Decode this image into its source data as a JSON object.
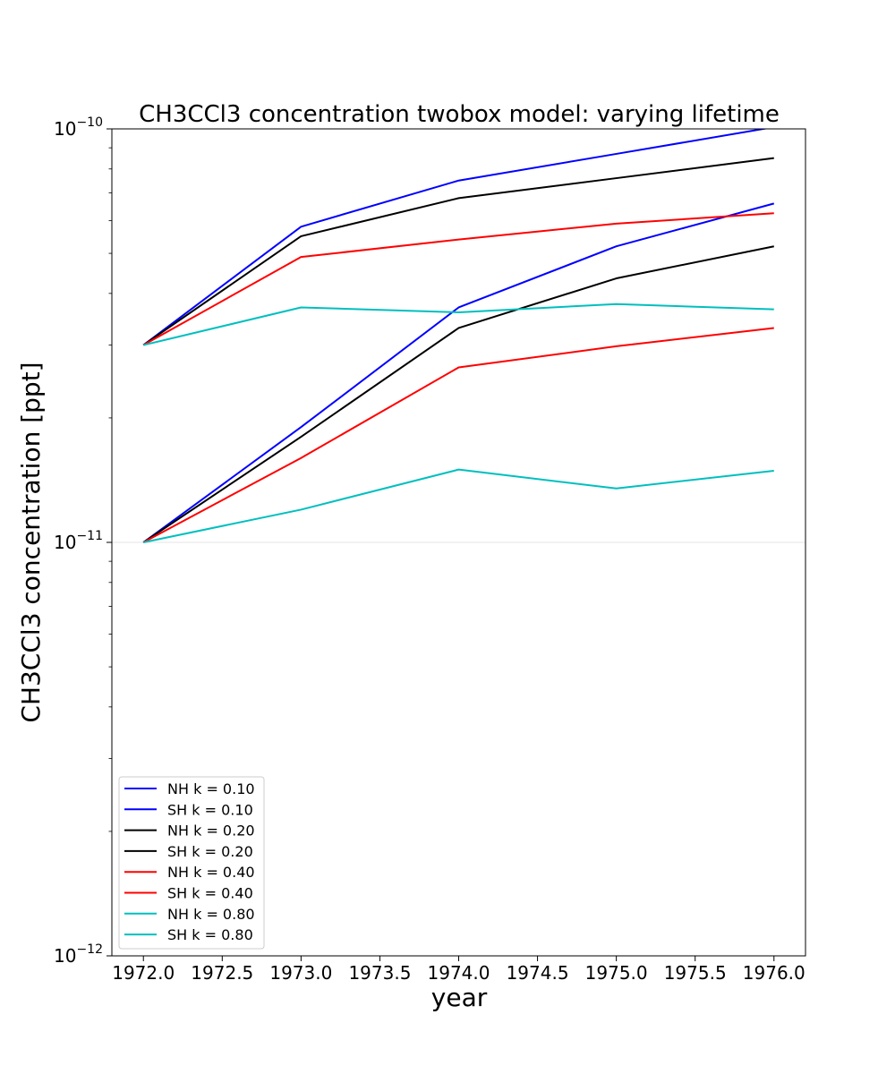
{
  "chart_data": {
    "type": "line",
    "title": "CH3CCl3 concentration twobox model: varying lifetime",
    "xlabel": "year",
    "ylabel": "CH3CCl3 concentration [ppt]",
    "yscale": "log",
    "xlim": [
      1971.8,
      1976.2
    ],
    "ylim": [
      1e-12,
      1e-10
    ],
    "x_ticks": [
      "1972.0",
      "1972.5",
      "1973.0",
      "1973.5",
      "1974.0",
      "1974.5",
      "1975.0",
      "1975.5",
      "1976.0"
    ],
    "y_ticks": [
      {
        "value": 1e-12,
        "mantissa": "10",
        "exponent": "−12"
      },
      {
        "value": 1e-11,
        "mantissa": "10",
        "exponent": "−11"
      },
      {
        "value": 1e-10,
        "mantissa": "10",
        "exponent": "−10"
      }
    ],
    "grid": false,
    "legend_position": "lower-left",
    "x": [
      1972,
      1973,
      1974,
      1975,
      1976
    ],
    "series": [
      {
        "name": "NH k = 0.10",
        "color": "#0000ff",
        "values": [
          3e-11,
          5.8e-11,
          7.5e-11,
          8.7e-11,
          1.01e-10
        ]
      },
      {
        "name": "SH k = 0.10",
        "color": "#0000ff",
        "values": [
          1e-11,
          1.9e-11,
          3.7e-11,
          5.2e-11,
          6.6e-11
        ]
      },
      {
        "name": "NH k = 0.20",
        "color": "#000000",
        "values": [
          3e-11,
          5.5e-11,
          6.8e-11,
          7.6e-11,
          8.5e-11
        ]
      },
      {
        "name": "SH k = 0.20",
        "color": "#000000",
        "values": [
          1e-11,
          1.8e-11,
          3.3e-11,
          4.35e-11,
          5.2e-11
        ]
      },
      {
        "name": "NH k = 0.40",
        "color": "#ff0000",
        "values": [
          3e-11,
          4.9e-11,
          5.4e-11,
          5.9e-11,
          6.25e-11
        ]
      },
      {
        "name": "SH k = 0.40",
        "color": "#ff0000",
        "values": [
          1e-11,
          1.6e-11,
          2.65e-11,
          2.98e-11,
          3.3e-11
        ]
      },
      {
        "name": "NH k = 0.80",
        "color": "#00bfbf",
        "values": [
          3e-11,
          3.7e-11,
          3.6e-11,
          3.77e-11,
          3.66e-11
        ]
      },
      {
        "name": "SH k = 0.80",
        "color": "#00bfbf",
        "values": [
          1e-11,
          1.2e-11,
          1.5e-11,
          1.35e-11,
          1.49e-11
        ]
      }
    ]
  }
}
